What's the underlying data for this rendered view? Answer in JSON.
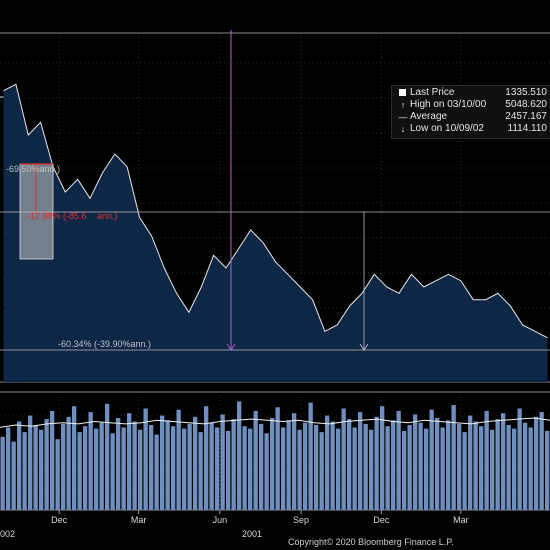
{
  "chart_data": {
    "type": "line",
    "legend": {
      "placement": "top-right",
      "items": [
        {
          "label": "Last Price",
          "value": "1335.510",
          "symbol": "square"
        },
        {
          "label": "High on 03/10/00",
          "value": "5048.620",
          "symbol": "arrow-up"
        },
        {
          "label": "Average",
          "value": "2457.167",
          "symbol": "dash"
        },
        {
          "label": "Low on 10/09/02",
          "value": "1114.110",
          "symbol": "arrow-down"
        }
      ]
    },
    "annotations": [
      {
        "text": "-69.50%ann.)",
        "color": "#c0c0c0"
      },
      {
        "text": "-17.98% (-85.6",
        "color": "#e03030"
      },
      {
        "text": "ann.)",
        "color": "#e03030"
      },
      {
        "text": "-60.34% (-39.90%ann.)",
        "color": "#c0c0c0"
      }
    ],
    "x_ticks": [
      {
        "label": "Dec",
        "date": "2000-12-01"
      },
      {
        "label": "Mar",
        "date": "2001-03-01"
      },
      {
        "label": "Jun",
        "date": "2001-06-01"
      },
      {
        "label": "Sep",
        "date": "2001-09-01"
      },
      {
        "label": "Dec",
        "date": "2001-12-01"
      },
      {
        "label": "Mar",
        "date": "2002-03-01"
      }
    ],
    "year_labels": [
      "002",
      "2001"
    ],
    "x_range": [
      "2000-09-25",
      "2002-06-10"
    ],
    "price": {
      "name": "Last Price",
      "ylim": [
        1300,
        4000
      ],
      "x": [
        "2000-09-29",
        "2000-10-13",
        "2000-10-27",
        "2000-11-10",
        "2000-11-24",
        "2000-12-08",
        "2000-12-22",
        "2001-01-05",
        "2001-01-19",
        "2001-02-02",
        "2001-02-16",
        "2001-03-02",
        "2001-03-16",
        "2001-03-30",
        "2001-04-13",
        "2001-04-27",
        "2001-05-11",
        "2001-05-25",
        "2001-06-08",
        "2001-06-22",
        "2001-07-06",
        "2001-07-20",
        "2001-08-03",
        "2001-08-17",
        "2001-08-31",
        "2001-09-14",
        "2001-09-28",
        "2001-10-12",
        "2001-10-26",
        "2001-11-09",
        "2001-11-23",
        "2001-12-07",
        "2001-12-21",
        "2002-01-04",
        "2002-01-18",
        "2002-02-01",
        "2002-02-15",
        "2002-03-01",
        "2002-03-15",
        "2002-03-29",
        "2002-04-12",
        "2002-04-26",
        "2002-05-10",
        "2002-05-24",
        "2002-06-07"
      ],
      "values": [
        3600,
        3650,
        3250,
        3350,
        3000,
        2800,
        2900,
        2750,
        2950,
        3100,
        3000,
        2600,
        2450,
        2200,
        2000,
        1850,
        2050,
        2300,
        2200,
        2350,
        2500,
        2400,
        2250,
        2150,
        2050,
        1950,
        1700,
        1750,
        1900,
        2000,
        2150,
        2050,
        2000,
        2150,
        2050,
        2100,
        2150,
        2100,
        1950,
        1950,
        2000,
        1900,
        1750,
        1700,
        1650
      ]
    },
    "volume": {
      "ylim": [
        0,
        100
      ],
      "values": [
        62,
        70,
        58,
        75,
        66,
        80,
        72,
        68,
        77,
        84,
        60,
        73,
        79,
        88,
        66,
        71,
        83,
        69,
        74,
        90,
        65,
        78,
        70,
        82,
        75,
        68,
        86,
        72,
        64,
        80,
        76,
        71,
        85,
        69,
        73,
        79,
        66,
        88,
        74,
        70,
        81,
        67,
        77,
        92,
        71,
        69,
        84,
        73,
        65,
        78,
        87,
        70,
        76,
        82,
        68,
        74,
        91,
        72,
        66,
        80,
        75,
        69,
        86,
        77,
        70,
        83,
        73,
        68,
        79,
        88,
        71,
        76,
        84,
        67,
        72,
        81,
        74,
        69,
        85,
        78,
        70,
        76,
        89,
        73,
        66,
        80,
        75,
        71,
        84,
        68,
        77,
        82,
        72,
        69,
        86,
        74,
        70,
        79,
        83,
        67
      ]
    },
    "volume_average": [
      70,
      72,
      71,
      73,
      74,
      73,
      75,
      74,
      73,
      74,
      76,
      75,
      74,
      73,
      75,
      76,
      77,
      76,
      75,
      76,
      74,
      73,
      75,
      76,
      77,
      75,
      74,
      76,
      75,
      74,
      73,
      75,
      76,
      77,
      78,
      76
    ]
  },
  "copyright": "Copyright© 2020 Bloomberg Finance L.P."
}
